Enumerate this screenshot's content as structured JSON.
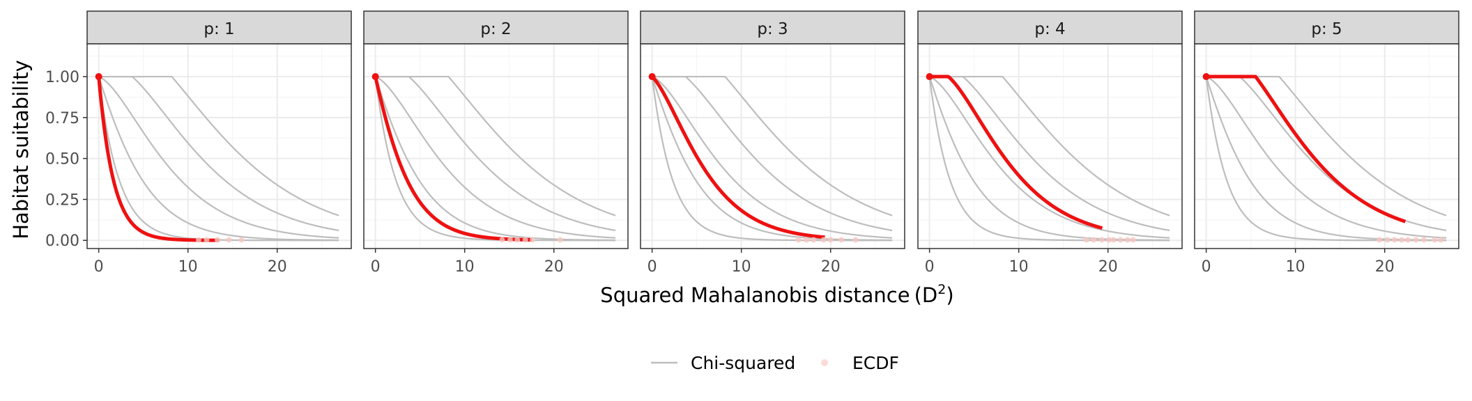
{
  "chart_data": {
    "type": "line",
    "facet_label_prefix": "p: ",
    "panels": [
      {
        "label": "1",
        "p": 1,
        "ecdf_max": 16,
        "ecdf_outliers": [
          11.2,
          12.1,
          13.3,
          14.6,
          16.0
        ]
      },
      {
        "label": "2",
        "p": 2,
        "ecdf_max": 20.7,
        "ecdf_outliers": [
          14.2,
          15.1,
          15.9,
          16.8,
          17.6,
          20.7
        ]
      },
      {
        "label": "3",
        "p": 3,
        "ecdf_max": 22.8,
        "ecdf_outliers": [
          16.4,
          17.3,
          18.1,
          19.2,
          20.0,
          21.2,
          22.8
        ]
      },
      {
        "label": "4",
        "p": 4,
        "ecdf_max": 22.8,
        "ecdf_outliers": [
          17.6,
          18.4,
          19.3,
          20.1,
          20.6,
          21.4,
          22.2,
          22.8
        ]
      },
      {
        "label": "5",
        "p": 5,
        "ecdf_max": 26.3,
        "ecdf_outliers": [
          19.4,
          20.3,
          21.1,
          21.9,
          22.6,
          23.5,
          24.4,
          25.6,
          26.3
        ]
      }
    ],
    "chi_squared_df": [
      1,
      2,
      3,
      4,
      5
    ],
    "chi_squared_x_range": [
      0,
      27
    ],
    "xlabel": "Squared Mahalanobis distance",
    "xlabel_math": "D",
    "xlabel_sup": "2",
    "ylabel": "Habitat suitability",
    "xlim": [
      -1.3,
      28.3
    ],
    "ylim": [
      -0.05,
      1.2
    ],
    "xticks": [
      0,
      10,
      20
    ],
    "yticks": [
      0.0,
      0.25,
      0.5,
      0.75,
      1.0
    ],
    "ytick_labels": [
      "0.00",
      "0.25",
      "0.50",
      "0.75",
      "1.00"
    ],
    "legend": [
      {
        "label": "Chi-squared",
        "kind": "line",
        "color": "#bdbdbd"
      },
      {
        "label": "ECDF",
        "kind": "point",
        "color": "#fadbd8"
      }
    ],
    "legend_position": "bottom",
    "colors": {
      "chi_squared": "#bdbdbd",
      "ecdf": "#ee1111",
      "ecdf_light": "#f6c7c2",
      "grid": "#ebebeb",
      "strip_fill": "#d9d9d9",
      "panel_border": "#333333"
    }
  }
}
